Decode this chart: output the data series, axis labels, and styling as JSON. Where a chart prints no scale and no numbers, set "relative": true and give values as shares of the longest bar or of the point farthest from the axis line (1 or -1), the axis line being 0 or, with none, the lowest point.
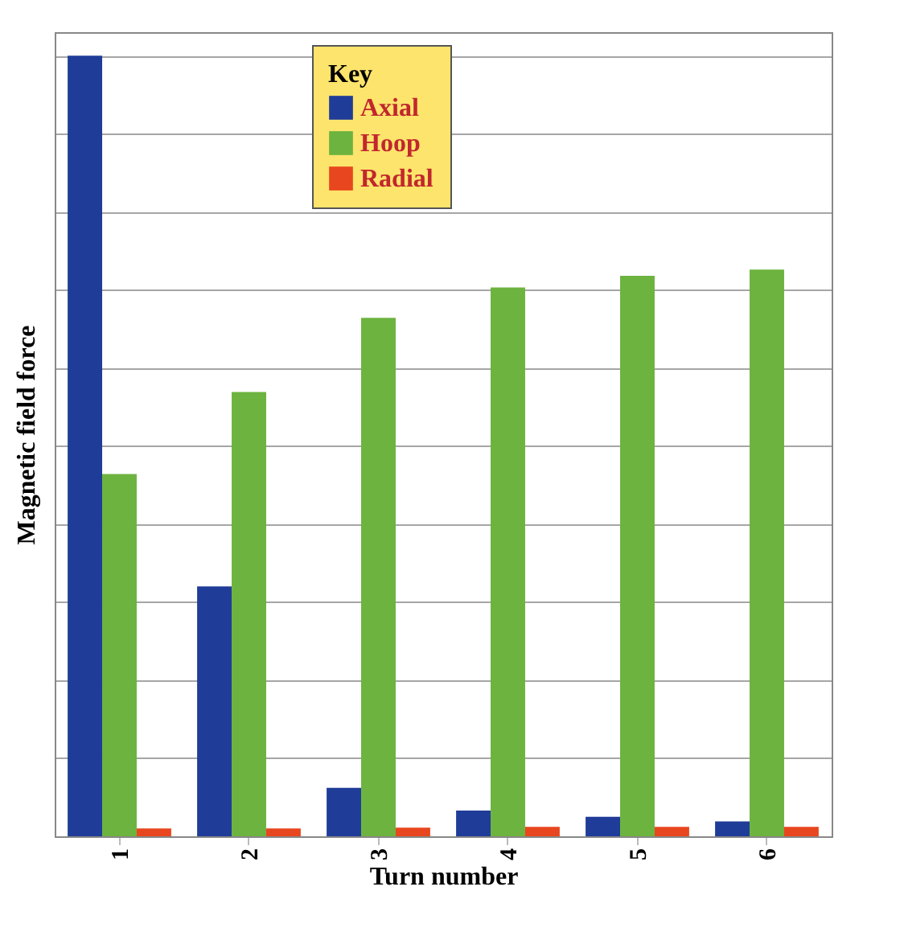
{
  "chart_data": {
    "type": "bar",
    "xlabel": "Turn number",
    "ylabel": "Magnetic field force",
    "legend_title": "Key",
    "relative": true,
    "grid": "y",
    "legend": "top",
    "tick_labels": "x",
    "categories": [
      "1",
      "2",
      "3",
      "4",
      "5",
      "6"
    ],
    "series": [
      {
        "name": "Axial",
        "color": "#1f3c98",
        "values": [
          1,
          0.32,
          0.062,
          0.033,
          0.025,
          0.019
        ]
      },
      {
        "name": "Hoop",
        "color": "#6cb33f",
        "values": [
          0.464,
          0.569,
          0.664,
          0.703,
          0.718,
          0.726
        ]
      },
      {
        "name": "Radial",
        "color": "#e8461e",
        "values": [
          0.01,
          0.01,
          0.011,
          0.012,
          0.012,
          0.012
        ]
      }
    ]
  }
}
